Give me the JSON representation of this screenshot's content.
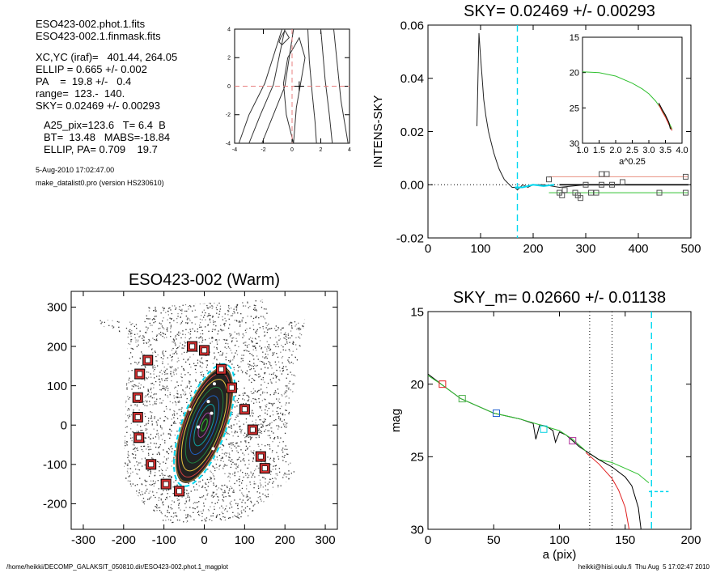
{
  "info": {
    "lines": [
      "ESO423-002.phot.1.fits",
      "ESO423-002.1.finmask.fits",
      "XC,YC (iraf)=   401.44, 264.05",
      "ELLIP = 0.665 +/- 0.002",
      "PA    =  19.8 +/-   0.4",
      "range=  123.-  140.",
      "SKY= 0.02469 +/- 0.00293",
      "A25_pix=123.6   T= 6.4  B",
      "BT=  13.48   MABS=-18.84",
      "ELLIP, PA= 0.709    19.7"
    ],
    "date": "5-Aug-2010 17:02:47.00",
    "program": "make_datalist0.pro (version HS230610)"
  },
  "footer": {
    "left": "/home/heikki/DECOMP_GALAKSIT_050810.dir/ESO423-002.phot.1_magplot",
    "right": "heikki@hiisi.oulu.fi  Thu Aug  5 17:02:47 2010"
  },
  "chart_data": [
    {
      "type": "line",
      "id": "contour",
      "title": "",
      "xlim": [
        -4,
        4
      ],
      "ylim": [
        -4,
        4
      ],
      "xticks": [
        "-4",
        "-2",
        "0",
        "2",
        "4"
      ],
      "yticks": [
        "-4",
        "-2",
        "0",
        "2",
        "4"
      ],
      "series": [
        {
          "x": [
            -3.7,
            -3.0,
            -1.9,
            -0.7
          ],
          "y": [
            -4.0,
            -2.0,
            0.2,
            4.0
          ]
        },
        {
          "x": [
            -3.0,
            -2.2,
            -1.3,
            -0.5
          ],
          "y": [
            -4.0,
            -2.0,
            0.1,
            4.0
          ]
        },
        {
          "x": [
            -2.1,
            -1.3,
            -0.5,
            0.1
          ],
          "y": [
            -4.0,
            -2.0,
            0.0,
            4.0
          ]
        },
        {
          "x": [
            0.1,
            -0.4,
            -0.6,
            -0.3,
            0.5,
            0.9,
            0.6,
            0.3,
            0.1
          ],
          "y": [
            -4.0,
            -2.0,
            0.2,
            2.0,
            3.4,
            2.0,
            0.2,
            -1.5,
            -4.0
          ]
        },
        {
          "x": [
            1.7,
            1.6,
            1.4,
            1.2,
            1.1
          ],
          "y": [
            -4.0,
            -2.5,
            -0.5,
            1.8,
            4.0
          ]
        },
        {
          "x": [
            2.8,
            2.6,
            2.3,
            2.0
          ],
          "y": [
            -4.0,
            -2.0,
            0.5,
            4.0
          ]
        },
        {
          "x": [
            3.9,
            3.4,
            2.9
          ],
          "y": [
            -4.0,
            -1.0,
            4.0
          ]
        },
        {
          "x": [
            -0.8,
            -0.5,
            -0.2,
            -0.7,
            -0.9,
            -0.8
          ],
          "y": [
            3.4,
            3.9,
            3.4,
            2.9,
            3.1,
            3.4
          ]
        }
      ],
      "crosshair_x": 0,
      "crosshair_y": 0,
      "center": [
        0.5,
        0.0
      ]
    },
    {
      "type": "line",
      "id": "sky",
      "title": "SKY= 0.02469 +/- 0.00293",
      "xlabel": "",
      "ylabel": "INTENS-SKY",
      "xlim": [
        0,
        500
      ],
      "ylim": [
        -0.02,
        0.06
      ],
      "xticks": [
        "0",
        "100",
        "200",
        "300",
        "400",
        "500"
      ],
      "yticks": [
        "-0.02",
        "0.00",
        "0.02",
        "0.04",
        "0.06"
      ],
      "profile": {
        "x": [
          93,
          97,
          100,
          103,
          106,
          110,
          115,
          120,
          125,
          130,
          135,
          140,
          145,
          150,
          155,
          160,
          165,
          170,
          175,
          180,
          190,
          200,
          220,
          250,
          300,
          350,
          400,
          450
        ],
        "y": [
          0.022,
          0.057,
          0.048,
          0.04,
          0.032,
          0.026,
          0.02,
          0.016,
          0.012,
          0.009,
          0.006,
          0.004,
          0.002,
          0.001,
          0.0,
          -0.001,
          -0.001,
          -0.002,
          -0.001,
          0.0,
          -0.001,
          0.0,
          0.0,
          -0.001,
          0.0,
          0.0,
          0.0,
          0.0
        ]
      },
      "vline_x": 170,
      "zero_line": 0,
      "fit_line": {
        "x": [
          250,
          495
        ],
        "y": [
          0.0,
          0.0
        ]
      },
      "upper_line": {
        "x": [
          230,
          495
        ],
        "y": [
          0.003,
          0.003
        ]
      },
      "lower_line": {
        "x": [
          230,
          495
        ],
        "y": [
          -0.003,
          -0.003
        ]
      },
      "squares": {
        "x": [
          230,
          250,
          260,
          280,
          285,
          290,
          300,
          310,
          320,
          330,
          340,
          350,
          370,
          440,
          490,
          255,
          330,
          490
        ],
        "y": [
          0.002,
          -0.003,
          -0.002,
          -0.003,
          -0.004,
          -0.005,
          0.0,
          -0.003,
          -0.003,
          0.0,
          0.004,
          0.0,
          0.001,
          -0.003,
          0.003,
          -0.004,
          0.004,
          -0.003
        ]
      },
      "inset": {
        "xlabel": "a^0.25",
        "xlim": [
          1.0,
          4.0
        ],
        "ylim": [
          30,
          15
        ],
        "xticks": [
          "1.0",
          "1.5",
          "2.0",
          "2.5",
          "3.0",
          "3.5",
          "4.0"
        ],
        "yticks": [
          "15",
          "20",
          "25",
          "30"
        ],
        "green": {
          "x": [
            1.0,
            1.5,
            2.0,
            2.5,
            2.8,
            3.0,
            3.2,
            3.4,
            3.5,
            3.6,
            3.7
          ],
          "y": [
            19.9,
            20.0,
            20.5,
            21.5,
            22.3,
            23.0,
            24.0,
            25.3,
            26.2,
            27.0,
            28.0
          ]
        },
        "red": {
          "x": [
            3.3,
            3.4,
            3.5,
            3.6,
            3.7
          ],
          "y": [
            24.5,
            25.5,
            26.3,
            27.3,
            28.2
          ]
        },
        "black": {
          "x": [
            3.3,
            3.4,
            3.5,
            3.6,
            3.65
          ],
          "y": [
            24.3,
            25.2,
            26.0,
            27.0,
            28.0
          ]
        }
      }
    },
    {
      "type": "scatter",
      "id": "image",
      "title": "ESO423-002 (Warm)",
      "xlim": [
        -330,
        330
      ],
      "ylim": [
        -265,
        340
      ],
      "xticks": [
        "-300",
        "-200",
        "-100",
        "0",
        "100",
        "200",
        "300"
      ],
      "yticks": [
        "-200",
        "-100",
        "0",
        "100",
        "200",
        "300"
      ],
      "ellipse": {
        "cx": 0,
        "cy": 0,
        "a": 160,
        "b": 55,
        "pa": 20
      },
      "squares": {
        "x": [
          -140,
          -160,
          -165,
          -165,
          -162,
          -132,
          -95,
          -62,
          -30,
          0,
          42,
          68,
          100,
          120,
          140,
          150
        ],
        "y": [
          165,
          130,
          70,
          20,
          -32,
          -100,
          -150,
          -168,
          200,
          190,
          142,
          95,
          40,
          -12,
          -80,
          -110
        ]
      }
    },
    {
      "type": "line",
      "id": "mag",
      "title": "SKY_m=  0.02660 +/- 0.01138",
      "xlabel": "a (pix)",
      "ylabel": "mag",
      "xlim": [
        0,
        200
      ],
      "ylim": [
        30,
        15
      ],
      "xticks": [
        "0",
        "50",
        "100",
        "150",
        "200"
      ],
      "yticks": [
        "15",
        "20",
        "25",
        "30"
      ],
      "green": {
        "x": [
          0,
          10,
          25,
          50,
          70,
          85,
          100,
          110,
          120,
          130,
          140,
          150,
          160,
          168
        ],
        "y": [
          19.4,
          20.0,
          21.0,
          22.0,
          22.4,
          22.8,
          23.2,
          23.8,
          24.6,
          25.2,
          25.4,
          25.8,
          26.2,
          26.8
        ]
      },
      "red": {
        "x": [
          120,
          130,
          135,
          140,
          145,
          150,
          152,
          153
        ],
        "y": [
          24.7,
          25.5,
          26.0,
          26.5,
          27.3,
          28.5,
          29.5,
          30.0
        ]
      },
      "black": {
        "x": [
          120,
          130,
          140,
          150,
          155,
          160,
          162
        ],
        "y": [
          24.6,
          25.2,
          25.7,
          26.4,
          27.0,
          28.5,
          30.0
        ]
      },
      "vlines_dotted": [
        123,
        140
      ],
      "vline_dashed": 170,
      "hsegment": {
        "x": [
          168,
          183
        ],
        "y": 27.4
      },
      "markers": [
        {
          "x": 11,
          "y": 20.0,
          "color": "#e41a1c"
        },
        {
          "x": 26,
          "y": 21.0,
          "color": "#4daf4a"
        },
        {
          "x": 52,
          "y": 22.0,
          "color": "#1f5fd0"
        },
        {
          "x": 88,
          "y": 23.1,
          "color": "#00d0e0"
        },
        {
          "x": 110,
          "y": 23.9,
          "color": "#b0309a"
        }
      ]
    }
  ],
  "colors": {
    "cyan": "#00d8f0",
    "green": "#30c030",
    "red": "#e02020",
    "salmon": "#e89080",
    "contour_red": "#e88080"
  }
}
